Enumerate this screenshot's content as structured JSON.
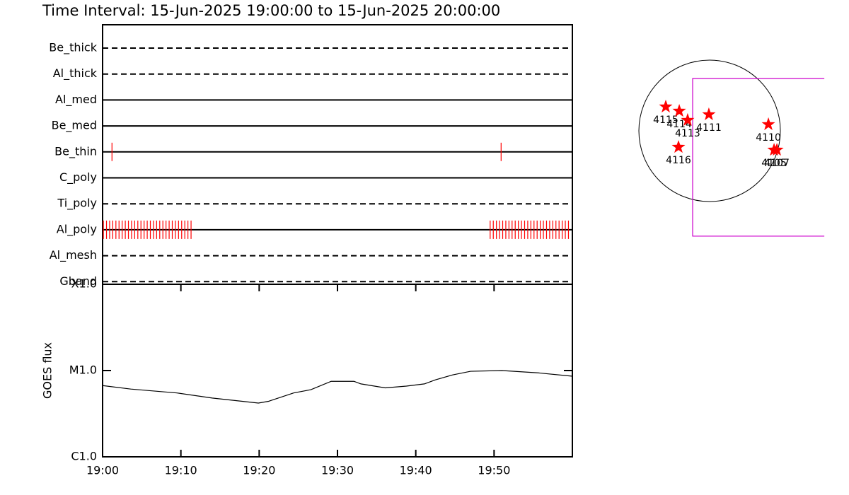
{
  "chart_data": [
    {
      "type": "timeline",
      "title": "Time Interval: 15-Jun-2025 19:00:00 to 15-Jun-2025 20:00:00",
      "xlim": [
        0,
        60
      ],
      "event_color": "#ff0000",
      "rows": [
        {
          "name": "Be_thick",
          "style": "dashed",
          "events": []
        },
        {
          "name": "Al_thick",
          "style": "dashed",
          "events": []
        },
        {
          "name": "Al_med",
          "style": "solid",
          "events": []
        },
        {
          "name": "Be_med",
          "style": "solid",
          "events": []
        },
        {
          "name": "Be_thin",
          "style": "solid",
          "events": [
            1.2,
            50.9
          ]
        },
        {
          "name": "C_poly",
          "style": "solid",
          "events": []
        },
        {
          "name": "Ti_poly",
          "style": "dashed",
          "events": []
        },
        {
          "name": "Al_poly",
          "style": "solid",
          "events": [
            0.1,
            0.5,
            0.9,
            1.3,
            1.7,
            2.1,
            2.5,
            2.9,
            3.3,
            3.7,
            4.1,
            4.5,
            4.9,
            5.3,
            5.7,
            6.1,
            6.5,
            6.9,
            7.3,
            7.7,
            8.1,
            8.5,
            8.9,
            9.3,
            9.7,
            10.1,
            10.5,
            10.9,
            11.3,
            49.5,
            49.9,
            50.3,
            50.7,
            51.1,
            51.5,
            51.9,
            52.3,
            52.7,
            53.1,
            53.5,
            53.9,
            54.3,
            54.7,
            55.1,
            55.5,
            55.9,
            56.3,
            56.7,
            57.1,
            57.5,
            57.9,
            58.3,
            58.7,
            59.1,
            59.5
          ]
        },
        {
          "name": "Al_mesh",
          "style": "dashed",
          "events": []
        },
        {
          "name": "Gband",
          "style": "dashed",
          "events": []
        }
      ]
    },
    {
      "type": "line",
      "ylabel": "GOES flux",
      "color": "#000000",
      "log": true,
      "x": [
        0,
        3.6,
        9.5,
        14,
        19.9,
        21.2,
        24.4,
        26.6,
        29.2,
        32.1,
        33,
        36.1,
        38.8,
        41.1,
        42.5,
        44.7,
        47,
        51,
        55.6,
        60
      ],
      "values": [
        6.7e-06,
        6.1e-06,
        5.5e-06,
        4.8e-06,
        4.2e-06,
        4.4e-06,
        5.5e-06,
        6e-06,
        7.5e-06,
        7.5e-06,
        7e-06,
        6.3e-06,
        6.6e-06,
        7e-06,
        7.8e-06,
        8.9e-06,
        9.8e-06,
        1e-05,
        9.4e-06,
        8.6e-06
      ],
      "xlim": [
        0,
        60
      ],
      "xticks": [
        {
          "value": 0,
          "label": "19:00"
        },
        {
          "value": 10,
          "label": "19:10"
        },
        {
          "value": 20,
          "label": "19:20"
        },
        {
          "value": 30,
          "label": "19:30"
        },
        {
          "value": 40,
          "label": "19:40"
        },
        {
          "value": 50,
          "label": "19:50"
        }
      ],
      "ylim": [
        1e-06,
        0.0001
      ],
      "yticks": [
        {
          "value": 1e-06,
          "label": "C1.0"
        },
        {
          "value": 1e-05,
          "label": "M1.0"
        },
        {
          "value": 0.0001,
          "label": "X1.0"
        }
      ]
    },
    {
      "type": "scatter",
      "color": "#ff0000",
      "radius": 950,
      "fov": [
        -228,
        -1415,
        1540,
        703
      ],
      "fov_color": "#cc00cc",
      "ars": [
        {
          "name": "4115",
          "x": -589,
          "y": 323
        },
        {
          "name": "4114",
          "x": -408,
          "y": 266
        },
        {
          "name": "4113",
          "x": -295,
          "y": 143
        },
        {
          "name": "4111",
          "x": -10,
          "y": 219
        },
        {
          "name": "4110",
          "x": 789,
          "y": 86
        },
        {
          "name": "4105",
          "x": 865,
          "y": -257
        },
        {
          "name": "4107",
          "x": 903,
          "y": -257
        },
        {
          "name": "4116",
          "x": -418,
          "y": -219
        }
      ]
    }
  ]
}
